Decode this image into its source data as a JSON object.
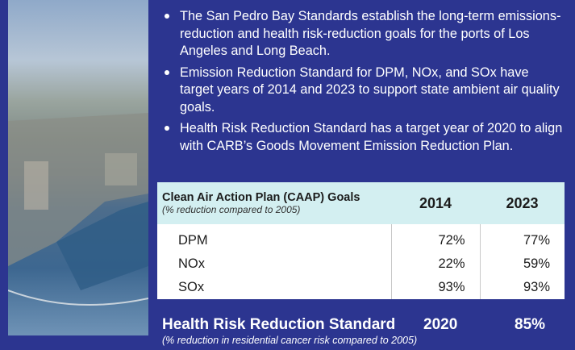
{
  "bullets": [
    "The San Pedro Bay Standards establish the long-term emissions-reduction and health risk-reduction goals for the ports of Los Angeles and Long Beach.",
    "Emission Reduction Standard for DPM, NOx, and SOx have target years of 2014 and 2023 to support state ambient air quality goals.",
    "Health Risk Reduction Standard has a target year of 2020 to align with CARB’s Goods Movement Emission Reduction Plan."
  ],
  "table": {
    "header": {
      "title": "Clean Air Action Plan (CAAP) Goals",
      "subtitle": "(% reduction compared to 2005)",
      "columns": [
        "2014",
        "2023"
      ]
    },
    "rows": [
      [
        "DPM",
        "72%",
        "77%"
      ],
      [
        "NOx",
        "22%",
        "59%"
      ],
      [
        "SOx",
        "93%",
        "93%"
      ]
    ]
  },
  "health": {
    "title": "Health Risk Reduction Standard",
    "year": "2020",
    "value": "85%",
    "subtitle": "(% reduction in residential cancer risk compared to 2005)"
  }
}
